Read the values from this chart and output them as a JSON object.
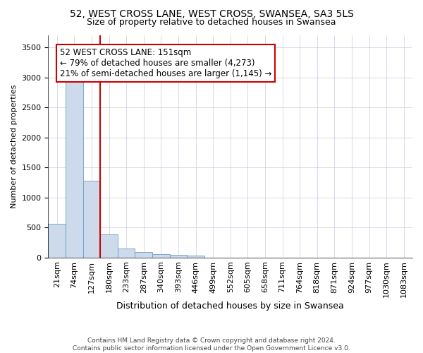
{
  "title_line1": "52, WEST CROSS LANE, WEST CROSS, SWANSEA, SA3 5LS",
  "title_line2": "Size of property relative to detached houses in Swansea",
  "xlabel": "Distribution of detached houses by size in Swansea",
  "ylabel": "Number of detached properties",
  "footnote": "Contains HM Land Registry data © Crown copyright and database right 2024.\nContains public sector information licensed under the Open Government Licence v3.0.",
  "bar_color": "#cddaeb",
  "bar_edge_color": "#6a9cc9",
  "grid_color": "#c8cce0",
  "categories": [
    "21sqm",
    "74sqm",
    "127sqm",
    "180sqm",
    "233sqm",
    "287sqm",
    "340sqm",
    "393sqm",
    "446sqm",
    "499sqm",
    "552sqm",
    "605sqm",
    "658sqm",
    "711sqm",
    "764sqm",
    "818sqm",
    "871sqm",
    "924sqm",
    "977sqm",
    "1030sqm",
    "1083sqm"
  ],
  "values": [
    560,
    3020,
    1280,
    390,
    155,
    85,
    55,
    45,
    35,
    0,
    0,
    0,
    0,
    0,
    0,
    0,
    0,
    0,
    0,
    0,
    0
  ],
  "vline_color": "#cc0000",
  "annotation_text": "52 WEST CROSS LANE: 151sqm\n← 79% of detached houses are smaller (4,273)\n21% of semi-detached houses are larger (1,145) →",
  "ylim": [
    0,
    3700
  ],
  "yticks": [
    0,
    500,
    1000,
    1500,
    2000,
    2500,
    3000,
    3500
  ],
  "title_fontsize": 10,
  "subtitle_fontsize": 9,
  "ylabel_fontsize": 8,
  "xlabel_fontsize": 9,
  "tick_fontsize": 8,
  "annotation_fontsize": 8.5
}
